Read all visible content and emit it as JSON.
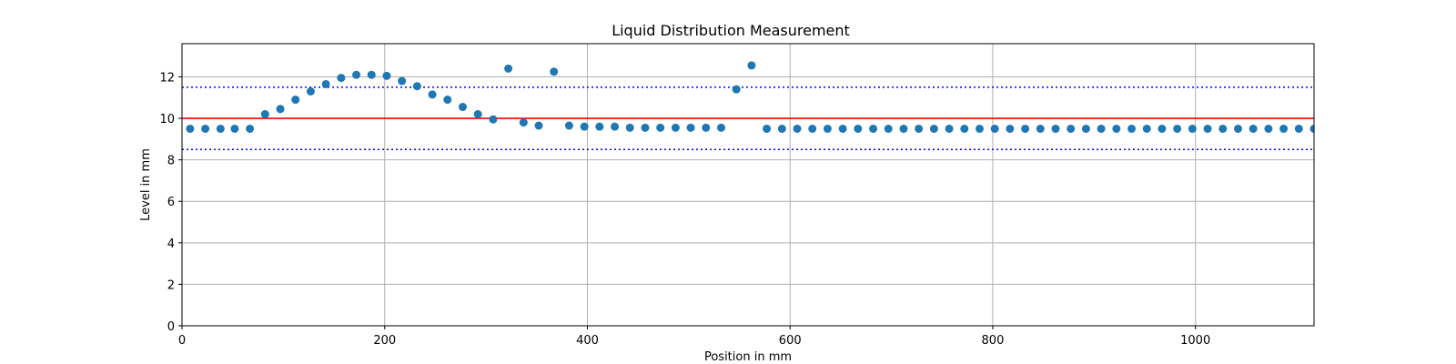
{
  "chart_data": {
    "type": "scatter",
    "title": "Liquid Distribution Measurement",
    "xlabel": "Position in mm",
    "ylabel": "Level in mm",
    "xlim": [
      0,
      1117
    ],
    "ylim": [
      0,
      13.6
    ],
    "xticks": [
      0,
      200,
      400,
      600,
      800,
      1000
    ],
    "yticks": [
      0,
      2,
      4,
      6,
      8,
      10,
      12
    ],
    "grid": true,
    "point_color": "#1f77b4",
    "reference_lines": [
      {
        "y": 10.0,
        "style": "solid",
        "color": "#ff0000"
      },
      {
        "y": 11.5,
        "style": "dotted",
        "color": "#0000ff"
      },
      {
        "y": 8.5,
        "style": "dotted",
        "color": "#0000ff"
      }
    ],
    "points": [
      {
        "x": 8,
        "y": 9.5
      },
      {
        "x": 23,
        "y": 9.5
      },
      {
        "x": 38,
        "y": 9.5
      },
      {
        "x": 52,
        "y": 9.5
      },
      {
        "x": 67,
        "y": 9.5
      },
      {
        "x": 82,
        "y": 10.2
      },
      {
        "x": 97,
        "y": 10.45
      },
      {
        "x": 112,
        "y": 10.9
      },
      {
        "x": 127,
        "y": 11.3
      },
      {
        "x": 142,
        "y": 11.65
      },
      {
        "x": 157,
        "y": 11.95
      },
      {
        "x": 172,
        "y": 12.1
      },
      {
        "x": 187,
        "y": 12.1
      },
      {
        "x": 202,
        "y": 12.05
      },
      {
        "x": 217,
        "y": 11.8
      },
      {
        "x": 232,
        "y": 11.55
      },
      {
        "x": 247,
        "y": 11.15
      },
      {
        "x": 262,
        "y": 10.9
      },
      {
        "x": 277,
        "y": 10.55
      },
      {
        "x": 292,
        "y": 10.2
      },
      {
        "x": 307,
        "y": 9.95
      },
      {
        "x": 322,
        "y": 12.4
      },
      {
        "x": 337,
        "y": 9.8
      },
      {
        "x": 352,
        "y": 9.65
      },
      {
        "x": 367,
        "y": 12.25
      },
      {
        "x": 382,
        "y": 9.65
      },
      {
        "x": 397,
        "y": 9.6
      },
      {
        "x": 412,
        "y": 9.6
      },
      {
        "x": 427,
        "y": 9.6
      },
      {
        "x": 442,
        "y": 9.55
      },
      {
        "x": 457,
        "y": 9.55
      },
      {
        "x": 472,
        "y": 9.55
      },
      {
        "x": 487,
        "y": 9.55
      },
      {
        "x": 502,
        "y": 9.55
      },
      {
        "x": 517,
        "y": 9.55
      },
      {
        "x": 532,
        "y": 9.55
      },
      {
        "x": 547,
        "y": 11.4
      },
      {
        "x": 562,
        "y": 12.55
      },
      {
        "x": 577,
        "y": 9.5
      },
      {
        "x": 592,
        "y": 9.5
      },
      {
        "x": 607,
        "y": 9.5
      },
      {
        "x": 622,
        "y": 9.5
      },
      {
        "x": 637,
        "y": 9.5
      },
      {
        "x": 652,
        "y": 9.5
      },
      {
        "x": 667,
        "y": 9.5
      },
      {
        "x": 682,
        "y": 9.5
      },
      {
        "x": 697,
        "y": 9.5
      },
      {
        "x": 712,
        "y": 9.5
      },
      {
        "x": 727,
        "y": 9.5
      },
      {
        "x": 742,
        "y": 9.5
      },
      {
        "x": 757,
        "y": 9.5
      },
      {
        "x": 772,
        "y": 9.5
      },
      {
        "x": 787,
        "y": 9.5
      },
      {
        "x": 802,
        "y": 9.5
      },
      {
        "x": 817,
        "y": 9.5
      },
      {
        "x": 832,
        "y": 9.5
      },
      {
        "x": 847,
        "y": 9.5
      },
      {
        "x": 862,
        "y": 9.5
      },
      {
        "x": 877,
        "y": 9.5
      },
      {
        "x": 892,
        "y": 9.5
      },
      {
        "x": 907,
        "y": 9.5
      },
      {
        "x": 922,
        "y": 9.5
      },
      {
        "x": 937,
        "y": 9.5
      },
      {
        "x": 952,
        "y": 9.5
      },
      {
        "x": 967,
        "y": 9.5
      },
      {
        "x": 982,
        "y": 9.5
      },
      {
        "x": 997,
        "y": 9.5
      },
      {
        "x": 1012,
        "y": 9.5
      },
      {
        "x": 1027,
        "y": 9.5
      },
      {
        "x": 1042,
        "y": 9.5
      },
      {
        "x": 1057,
        "y": 9.5
      },
      {
        "x": 1072,
        "y": 9.5
      },
      {
        "x": 1087,
        "y": 9.5
      },
      {
        "x": 1102,
        "y": 9.5
      },
      {
        "x": 1117,
        "y": 9.5
      }
    ]
  }
}
